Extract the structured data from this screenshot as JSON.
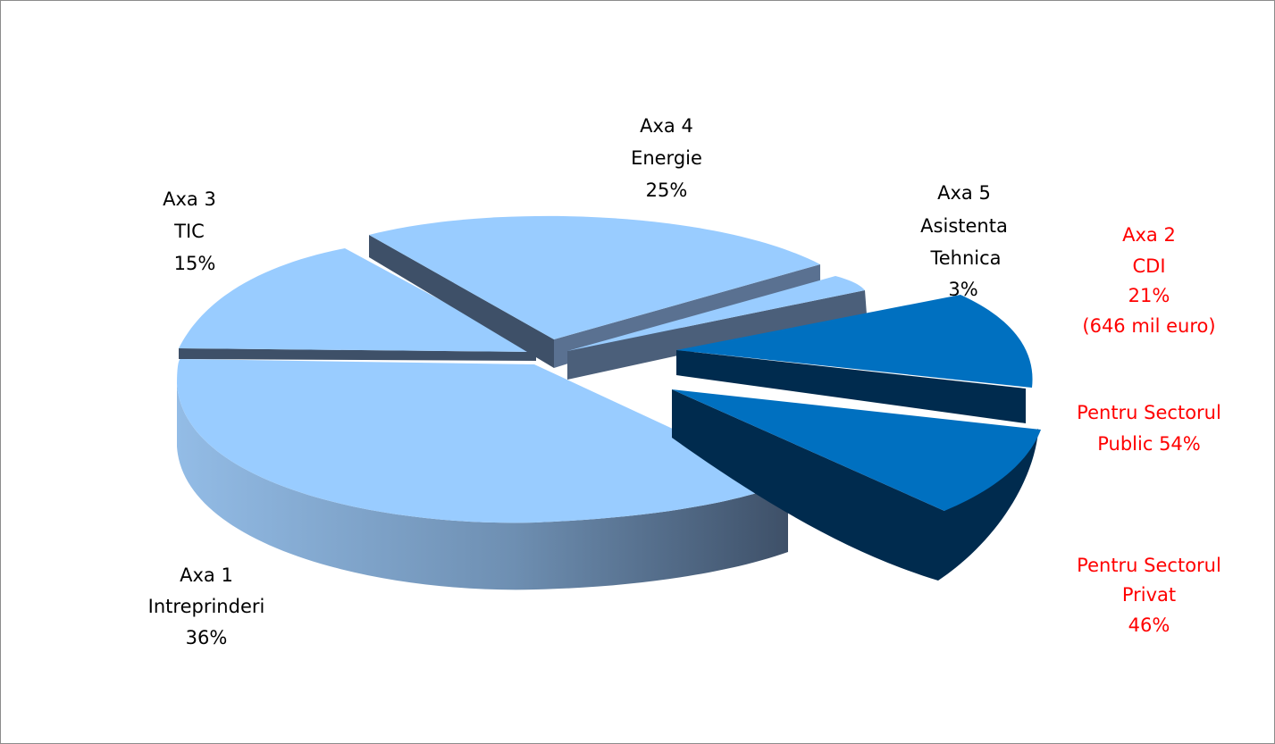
{
  "chart_data": {
    "type": "pie",
    "variant": "3d-exploded",
    "slices": [
      {
        "axis": "Axa 1",
        "name": "Intreprinderi",
        "percent_label": "36%",
        "value": 36,
        "color": "#99ccff"
      },
      {
        "axis": "Axa 2",
        "name": "CDI",
        "percent_label": "21%",
        "value": 21,
        "amount": "(646 mil euro)",
        "color": "#0070c0",
        "sub_slices": [
          {
            "name": "Pentru Sectorul Public",
            "percent_label": "54%",
            "value": 54
          },
          {
            "name": "Pentru Sectorul Privat",
            "percent_label": "46%",
            "value": 46
          }
        ]
      },
      {
        "axis": "Axa 5",
        "name": "Asistenta Tehnica",
        "percent_label": "3%",
        "value": 3,
        "color": "#99ccff"
      },
      {
        "axis": "Axa 4",
        "name": "Energie",
        "percent_label": "25%",
        "value": 25,
        "color": "#99ccff"
      },
      {
        "axis": "Axa 3",
        "name": "TIC",
        "percent_label": "15%",
        "value": 15,
        "color": "#99ccff"
      }
    ],
    "label_color_highlight": "#ff0000",
    "label_color_default": "#000000"
  },
  "labels": {
    "axa3": {
      "line1": "Axa 3",
      "line2": "TIC",
      "line3": "15%"
    },
    "axa4": {
      "line1": "Axa 4",
      "line2": "Energie",
      "line3": "25%"
    },
    "axa5": {
      "line1": "Axa 5",
      "line2": "Asistenta",
      "line3": "Tehnica",
      "line4": "3%"
    },
    "axa2": {
      "line1": "Axa 2",
      "line2": "CDI",
      "line3": "21%",
      "line4": "(646 mil euro)"
    },
    "public": {
      "line1": "Pentru Sectorul",
      "line2": "Public  54%"
    },
    "privat": {
      "line1": "Pentru Sectorul",
      "line2": "Privat",
      "line3": "46%"
    },
    "axa1": {
      "line1": "Axa 1",
      "line2": "Intreprinderi",
      "line3": "36%"
    }
  }
}
